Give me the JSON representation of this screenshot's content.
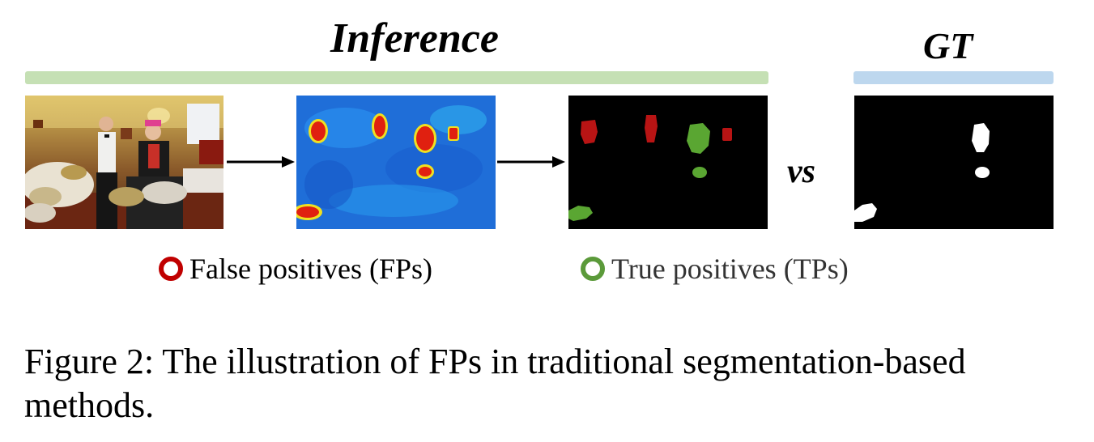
{
  "titles": {
    "inference": "Inference",
    "gt": "GT"
  },
  "vs": "vs",
  "legend": {
    "false_positive": {
      "label": "False positives (FPs)",
      "color": "#c00000"
    },
    "true_positive": {
      "label": "True positives (TPs)",
      "color": "#5b9a3a"
    }
  },
  "caption": "Figure 2: The illustration of FPs in traditional segmentation-based methods.",
  "colors": {
    "inference_bar": "#c5e0b4",
    "gt_bar": "#bdd7ee"
  }
}
